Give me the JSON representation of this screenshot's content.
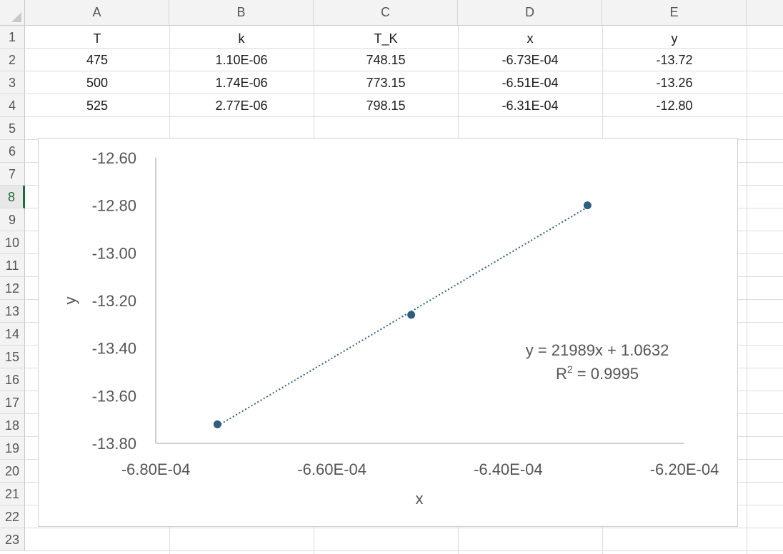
{
  "columns": [
    "A",
    "B",
    "C",
    "D",
    "E"
  ],
  "rows": [
    "1",
    "2",
    "3",
    "4",
    "5",
    "6",
    "7",
    "8",
    "9",
    "10",
    "11",
    "12",
    "13",
    "14",
    "15",
    "16",
    "17",
    "18",
    "19",
    "20",
    "21",
    "22",
    "23"
  ],
  "active_row": "8",
  "table": {
    "headers": [
      "T",
      "k",
      "T_K",
      "x",
      "y"
    ],
    "data": [
      [
        "475",
        "1.10E-06",
        "748.15",
        "-6.73E-04",
        "-13.72"
      ],
      [
        "500",
        "1.74E-06",
        "773.15",
        "-6.51E-04",
        "-13.26"
      ],
      [
        "525",
        "2.77E-06",
        "798.15",
        "-6.31E-04",
        "-12.80"
      ]
    ]
  },
  "chart_data": {
    "type": "scatter",
    "title": "",
    "xlabel": "x",
    "ylabel": "y",
    "xlim": [
      -0.00068,
      -0.00062
    ],
    "ylim": [
      -13.8,
      -12.6
    ],
    "x_ticks": [
      "-6.80E-04",
      "-6.60E-04",
      "-6.40E-04",
      "-6.20E-04"
    ],
    "y_ticks": [
      "-12.60",
      "-12.80",
      "-13.00",
      "-13.20",
      "-13.40",
      "-13.60",
      "-13.80"
    ],
    "points": [
      {
        "x": -0.000673,
        "y": -13.72
      },
      {
        "x": -0.000651,
        "y": -13.26
      },
      {
        "x": -0.000631,
        "y": -12.8
      }
    ],
    "trendline": {
      "type": "linear",
      "style": "dotted",
      "equation": "y = 21989x + 1.0632",
      "r2_label": "R",
      "r2_sup": "2",
      "r2_value": " = 0.9995"
    },
    "marker_color": "#2e5f7f",
    "grid": false,
    "legend": "none"
  }
}
